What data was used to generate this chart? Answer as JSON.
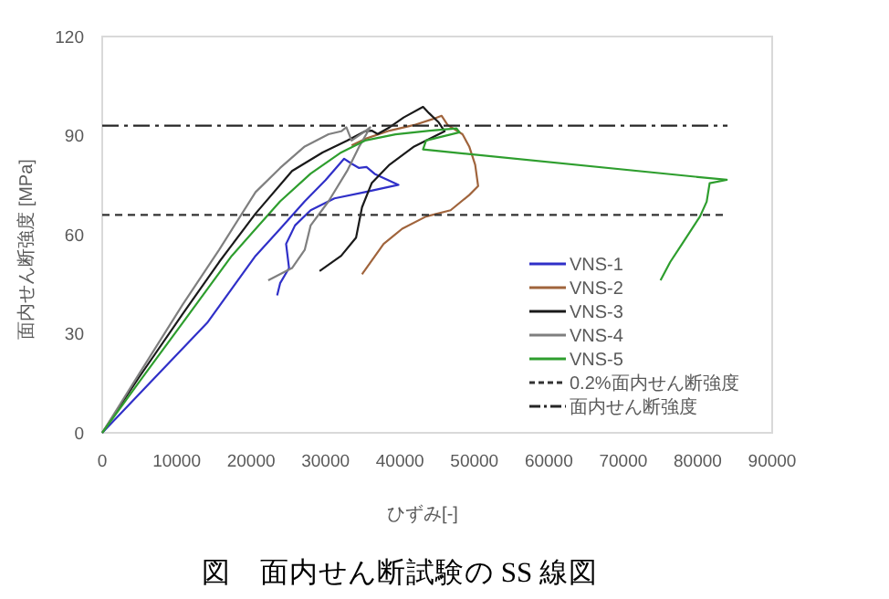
{
  "chart_data": {
    "type": "line",
    "title": "図　面内せん断試験の SS 線図",
    "xlabel": "ひずみ[-]",
    "ylabel": "面内せん断強度 [MPa]",
    "xlim": [
      0,
      90000
    ],
    "ylim": [
      0,
      120
    ],
    "xticks": [
      0,
      10000,
      20000,
      30000,
      40000,
      50000,
      60000,
      70000,
      80000,
      90000
    ],
    "yticks": [
      0,
      30,
      60,
      90,
      120
    ],
    "legend": "bottom right",
    "series": [
      {
        "name": "VNS-1",
        "color": "#3030c8",
        "x": [
          0,
          5000,
          14100,
          20600,
          24000,
          27200,
          30000,
          32500,
          33500,
          34500,
          35500,
          36600,
          39800,
          35300,
          31200,
          28000,
          25900,
          24700,
          25100,
          23900,
          23500
        ],
        "values": [
          0,
          11.8,
          33.3,
          53.6,
          62,
          70.1,
          76.5,
          83,
          81.5,
          80.2,
          80.5,
          78.4,
          75.1,
          72.9,
          71,
          67.4,
          62.8,
          57.2,
          49.9,
          45.3,
          41.6
        ]
      },
      {
        "name": "VNS-2",
        "color": "#a0643c",
        "x": [
          33500,
          35300,
          38600,
          41900,
          44400,
          45600,
          46400,
          48400,
          49300,
          50100,
          50500,
          49300,
          46800,
          43500,
          40300,
          37800,
          34900
        ],
        "values": [
          87,
          89,
          91.5,
          93.2,
          95,
          96,
          93.2,
          90.4,
          86.7,
          81.2,
          74.7,
          72,
          67.4,
          65.5,
          61.8,
          57.2,
          48
        ]
      },
      {
        "name": "VNS-3",
        "color": "#1a1a1a",
        "x": [
          0,
          5000,
          10800,
          15700,
          20600,
          25500,
          29600,
          32900,
          35300,
          36200,
          37000,
          38600,
          40500,
          43100,
          43900,
          45200,
          46000,
          41900,
          38600,
          36200,
          34900,
          34100,
          32100,
          29200
        ],
        "values": [
          0,
          17,
          36,
          51.7,
          66.4,
          79.3,
          84.9,
          88.5,
          91.3,
          91.5,
          90.5,
          92.5,
          95.5,
          98.7,
          96.8,
          94,
          91.3,
          86.7,
          81.2,
          75.6,
          68.3,
          59.1,
          53.6,
          49
        ]
      },
      {
        "name": "VNS-4",
        "color": "#7f7f7f",
        "x": [
          0,
          5000,
          10800,
          15700,
          20600,
          23900,
          27200,
          30400,
          32100,
          32800,
          33500,
          35300,
          36000,
          34600,
          32900,
          30400,
          28000,
          27200,
          25500,
          22300
        ],
        "values": [
          0,
          18,
          38.8,
          55.4,
          72.9,
          80.2,
          86.7,
          90.4,
          91.3,
          92.5,
          88.5,
          91.3,
          92.5,
          87,
          79.3,
          70.1,
          62.8,
          55.4,
          49.9,
          46.2
        ]
      },
      {
        "name": "VNS-5",
        "color": "#2e9e2e",
        "x": [
          0,
          5000,
          10800,
          17400,
          23900,
          28000,
          32100,
          35300,
          39400,
          44000,
          47600,
          48000,
          43500,
          43100,
          83900,
          81600,
          81200,
          80300,
          77900,
          76300,
          75000
        ],
        "values": [
          0,
          15.5,
          33.3,
          53.6,
          70.1,
          78.5,
          84.9,
          88.5,
          90.4,
          91.5,
          92.2,
          91,
          88.5,
          85.8,
          76.6,
          75.6,
          70,
          65.5,
          57.2,
          51.7,
          46.2
        ]
      },
      {
        "name": "0.2%面内せん断強度",
        "color": "#333333",
        "line_style": "dashed",
        "x": [
          0,
          84000
        ],
        "values": [
          66,
          66
        ]
      },
      {
        "name": "面内せん断強度",
        "color": "#262626",
        "line_style": "dashdot",
        "x": [
          0,
          84000
        ],
        "values": [
          93,
          93
        ]
      }
    ]
  }
}
